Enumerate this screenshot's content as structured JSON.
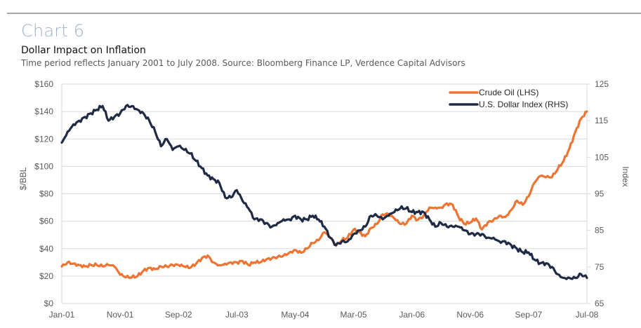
{
  "header": {
    "chart_number": "Chart 6",
    "title": "Dollar Impact on Inflation",
    "subtitle": "Time period reflects January 2001 to July 2008. Source: Bloomberg Finance LP, Verdence Capital Advisors"
  },
  "colors": {
    "oil": "#ed7433",
    "dollar": "#1f2a44",
    "grid": "#d9d9d9",
    "text": "#595959"
  },
  "chart_data": {
    "type": "line",
    "title": "Dollar Impact on Inflation",
    "xlabel": "",
    "ylabel": "$/BBL",
    "y2label": "Index",
    "ylim": [
      0,
      160
    ],
    "y2lim": [
      65,
      125
    ],
    "grid": true,
    "legend": "top-right",
    "x_start": "Jan-01",
    "x_end": "Jul-08",
    "x_ticks": [
      "Jan-01",
      "Nov-01",
      "Sep-02",
      "Jul-03",
      "May-04",
      "Mar-05",
      "Jan-06",
      "Nov-06",
      "Sep-07",
      "Jul-08"
    ],
    "y_ticks": [
      "$0",
      "$20",
      "$40",
      "$60",
      "$80",
      "$100",
      "$120",
      "$140",
      "$160"
    ],
    "y2_ticks": [
      "65",
      "75",
      "85",
      "95",
      "105",
      "115",
      "125"
    ],
    "series": [
      {
        "name": "Crude Oil (LHS)",
        "axis": "left",
        "frequency": "monthly",
        "values": [
          27,
          30,
          29,
          28,
          27,
          28,
          28,
          27,
          28,
          27,
          21,
          19,
          19,
          20,
          24,
          26,
          25,
          27,
          27,
          28,
          28,
          27,
          26,
          29,
          33,
          35,
          30,
          28,
          29,
          30,
          30,
          31,
          28,
          30,
          30,
          32,
          33,
          34,
          35,
          37,
          39,
          37,
          40,
          44,
          46,
          52,
          48,
          42,
          46,
          48,
          54,
          52,
          49,
          55,
          58,
          65,
          65,
          62,
          58,
          58,
          64,
          61,
          64,
          70,
          70,
          70,
          73,
          72,
          63,
          58,
          59,
          62,
          54,
          59,
          61,
          64,
          63,
          68,
          75,
          72,
          78,
          88,
          93,
          92,
          92,
          98,
          104,
          113,
          125,
          135,
          140
        ]
      },
      {
        "name": "U.S. Dollar Index (RHS)",
        "axis": "right",
        "frequency": "monthly",
        "values": [
          109,
          112,
          114,
          115,
          116,
          117,
          118,
          119,
          115,
          116,
          117,
          119,
          119,
          118,
          117,
          115,
          112,
          108,
          110,
          107,
          108,
          107,
          106,
          104,
          102,
          100,
          99,
          98,
          94,
          94,
          96,
          93,
          91,
          88,
          88,
          87,
          86,
          87,
          88,
          88,
          89,
          88,
          88,
          89,
          88,
          86,
          83,
          81,
          82,
          82,
          84,
          85,
          86,
          89,
          89,
          88,
          89,
          90,
          91,
          91,
          90,
          90,
          90,
          88,
          86,
          87,
          86,
          86,
          86,
          85,
          84,
          84,
          84,
          83,
          83,
          82,
          82,
          81,
          80,
          79,
          79,
          77,
          76,
          76,
          75,
          73,
          72,
          72,
          72,
          73,
          72
        ]
      }
    ]
  }
}
